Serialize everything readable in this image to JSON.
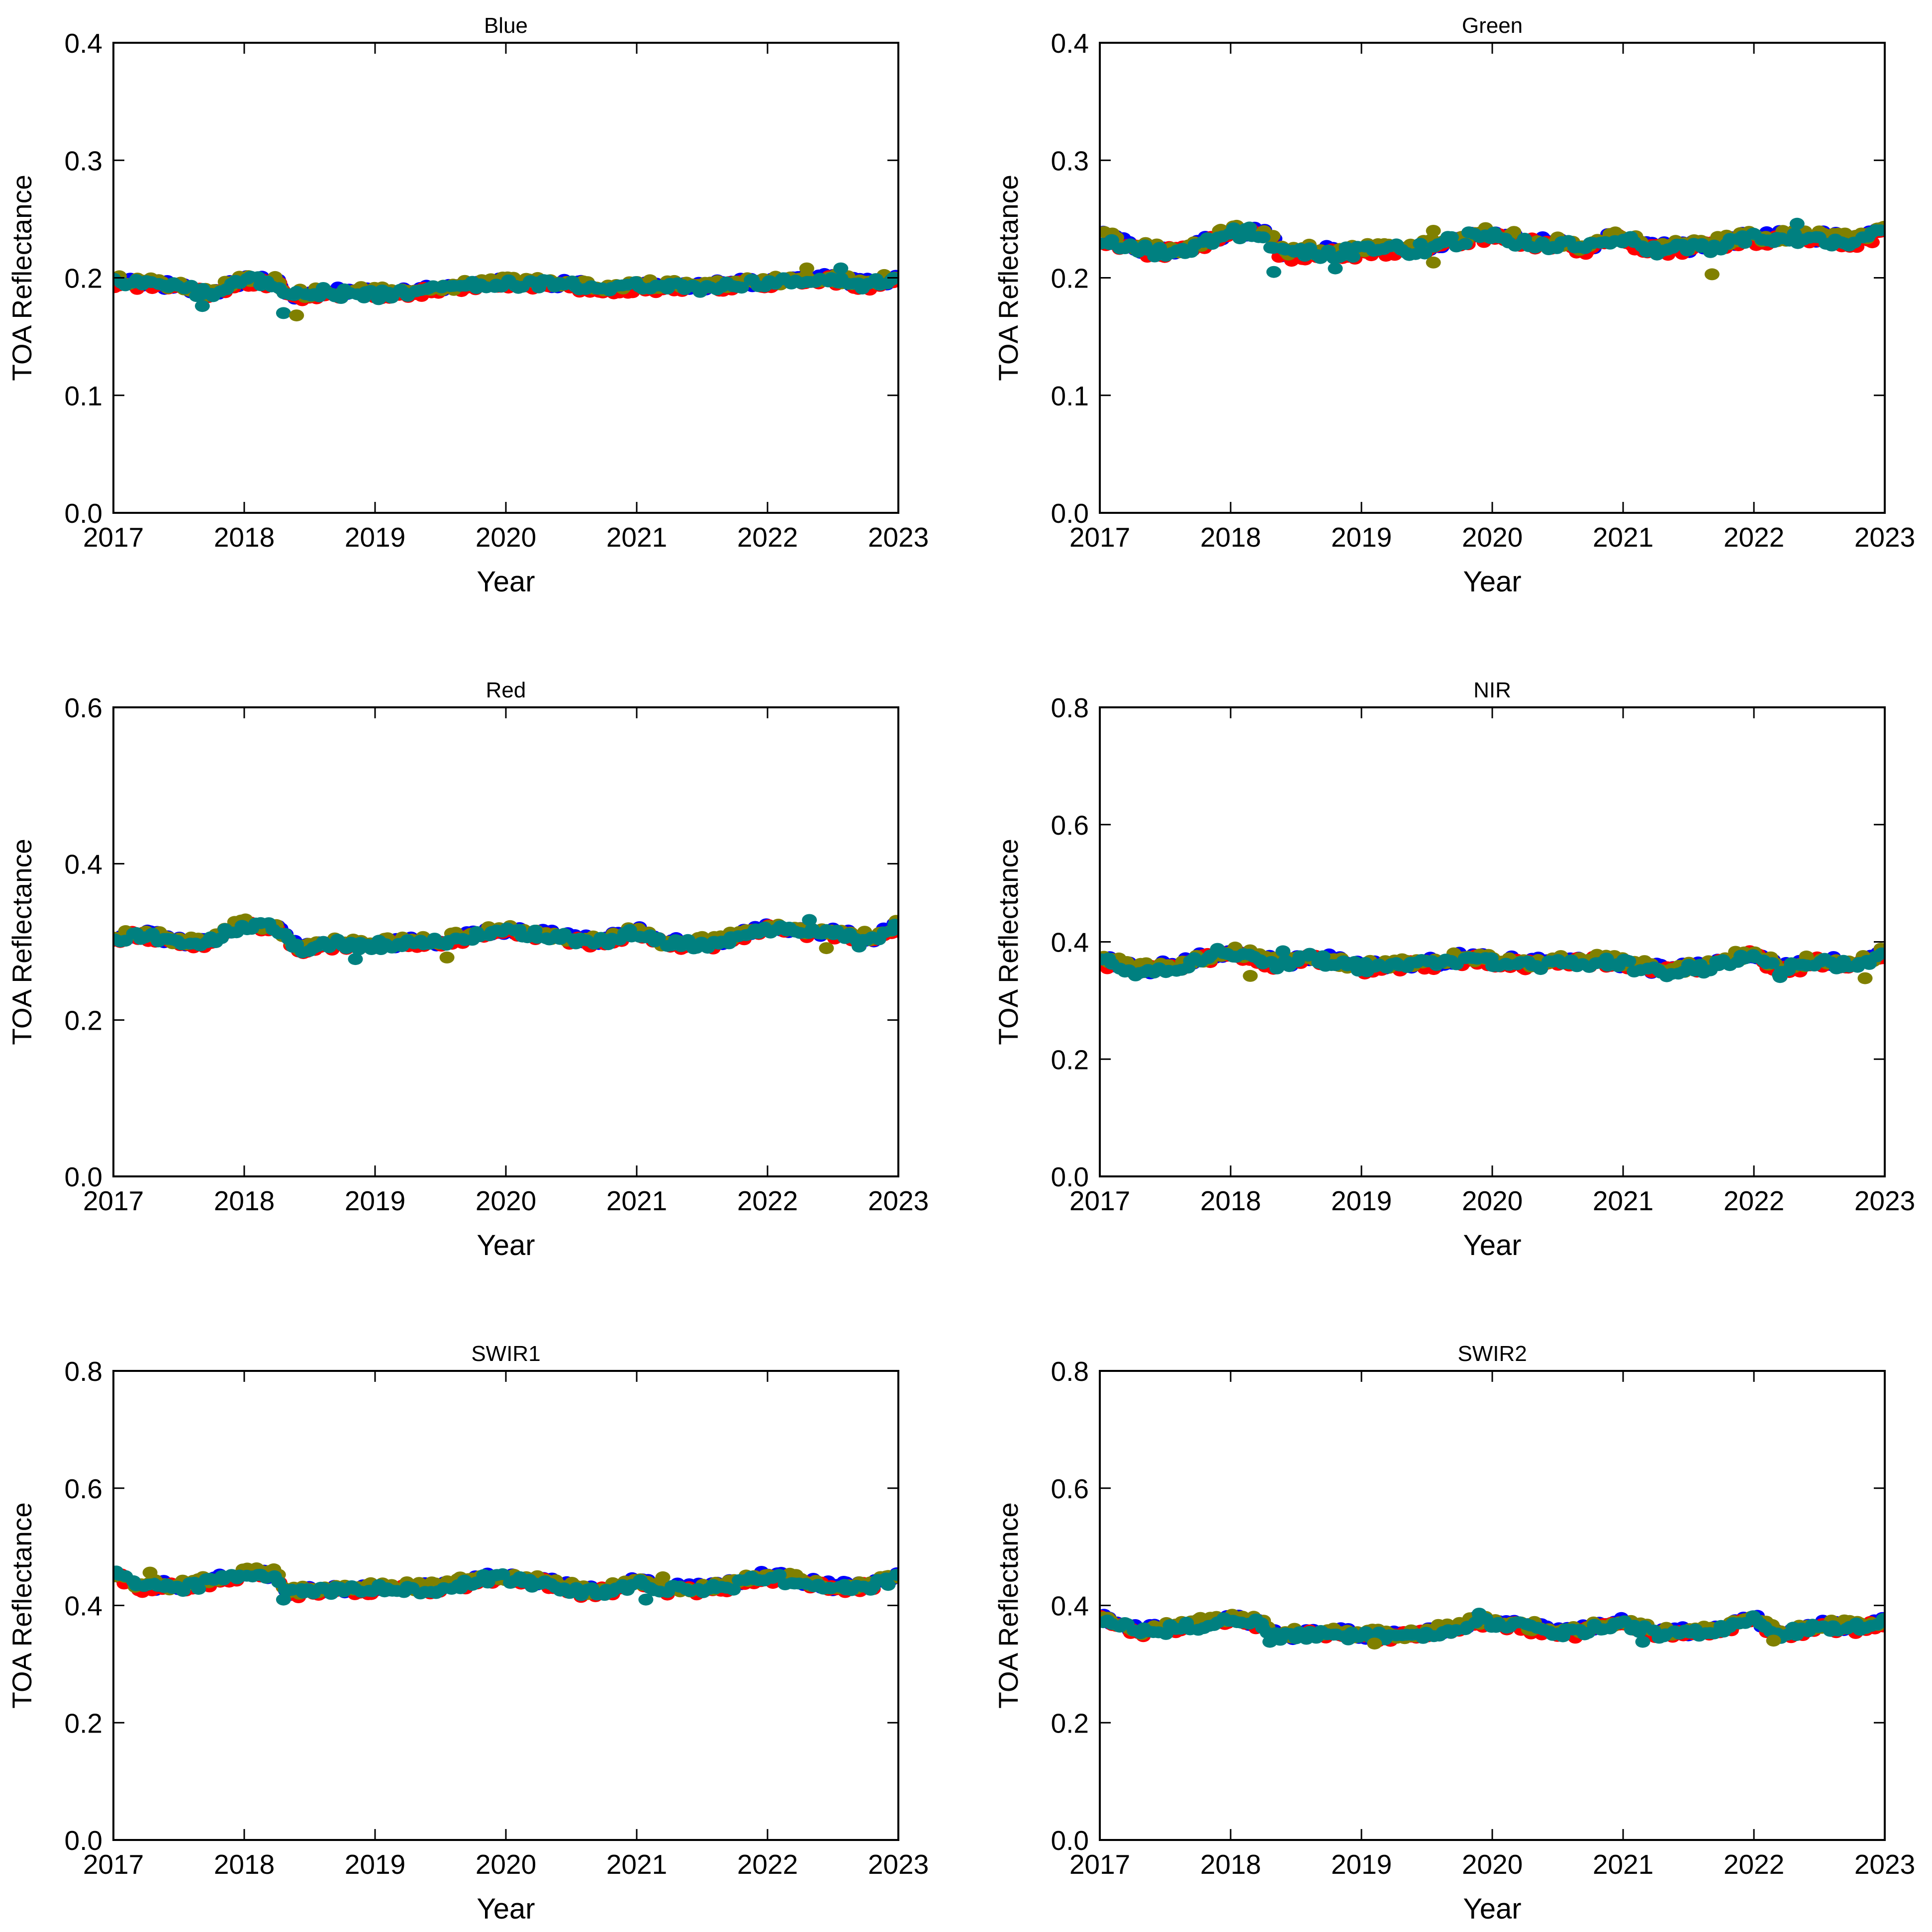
{
  "colors": {
    "series1": "#0000ff",
    "series2": "#ff0000",
    "series3": "#808000",
    "series4": "#008080"
  },
  "chart_data": [
    {
      "type": "scatter",
      "title": "Blue",
      "xlabel": "Year",
      "ylabel": "TOA Reflectance",
      "xlim": [
        2017,
        2023
      ],
      "ylim": [
        0,
        0.4
      ],
      "xticks": [
        "2017",
        "2018",
        "2019",
        "2020",
        "2021",
        "2022",
        "2023"
      ],
      "yticks": [
        "0.0",
        "0.1",
        "0.2",
        "0.3",
        "0.4"
      ],
      "ytick_values": [
        0,
        0.1,
        0.2,
        0.3,
        0.4
      ],
      "baseline": [
        [
          2017.0,
          0.197
        ],
        [
          2017.5,
          0.192
        ],
        [
          2017.75,
          0.186
        ],
        [
          2018.0,
          0.198
        ],
        [
          2018.25,
          0.196
        ],
        [
          2018.35,
          0.184
        ],
        [
          2018.6,
          0.188
        ],
        [
          2019.0,
          0.186
        ],
        [
          2019.5,
          0.191
        ],
        [
          2020.0,
          0.196
        ],
        [
          2020.5,
          0.194
        ],
        [
          2020.75,
          0.19
        ],
        [
          2021.0,
          0.193
        ],
        [
          2021.5,
          0.192
        ],
        [
          2022.0,
          0.196
        ],
        [
          2022.5,
          0.199
        ],
        [
          2022.75,
          0.194
        ],
        [
          2023.0,
          0.199
        ]
      ],
      "spread": 0.004,
      "outliers": [
        [
          2018.3,
          0.17
        ],
        [
          2018.4,
          0.168
        ],
        [
          2017.68,
          0.176
        ],
        [
          2022.3,
          0.208
        ],
        [
          2022.56,
          0.208
        ]
      ]
    },
    {
      "type": "scatter",
      "title": "Green",
      "xlabel": "Year",
      "ylabel": "TOA Reflectance",
      "xlim": [
        2017,
        2023
      ],
      "ylim": [
        0,
        0.4
      ],
      "xticks": [
        "2017",
        "2018",
        "2019",
        "2020",
        "2021",
        "2022",
        "2023"
      ],
      "yticks": [
        "0.0",
        "0.1",
        "0.2",
        "0.3",
        "0.4"
      ],
      "ytick_values": [
        0,
        0.1,
        0.2,
        0.3,
        0.4
      ],
      "baseline": [
        [
          2017.0,
          0.234
        ],
        [
          2017.3,
          0.224
        ],
        [
          2017.6,
          0.222
        ],
        [
          2017.75,
          0.228
        ],
        [
          2018.0,
          0.239
        ],
        [
          2018.25,
          0.238
        ],
        [
          2018.4,
          0.22
        ],
        [
          2018.7,
          0.222
        ],
        [
          2019.0,
          0.222
        ],
        [
          2019.5,
          0.226
        ],
        [
          2019.9,
          0.237
        ],
        [
          2020.3,
          0.231
        ],
        [
          2020.7,
          0.226
        ],
        [
          2021.0,
          0.235
        ],
        [
          2021.2,
          0.224
        ],
        [
          2021.6,
          0.226
        ],
        [
          2022.0,
          0.234
        ],
        [
          2022.5,
          0.234
        ],
        [
          2022.8,
          0.23
        ],
        [
          2023.0,
          0.24
        ]
      ],
      "spread": 0.005,
      "outliers": [
        [
          2018.33,
          0.205
        ],
        [
          2021.68,
          0.203
        ],
        [
          2022.33,
          0.246
        ],
        [
          2019.55,
          0.24
        ],
        [
          2018.8,
          0.208
        ],
        [
          2019.55,
          0.213
        ]
      ]
    },
    {
      "type": "scatter",
      "title": "Red",
      "xlabel": "Year",
      "ylabel": "TOA Reflectance",
      "xlim": [
        2017,
        2023
      ],
      "ylim": [
        0,
        0.6
      ],
      "xticks": [
        "2017",
        "2018",
        "2019",
        "2020",
        "2021",
        "2022",
        "2023"
      ],
      "yticks": [
        "0.0",
        "0.2",
        "0.4",
        "0.6"
      ],
      "ytick_values": [
        0,
        0.2,
        0.4,
        0.6
      ],
      "baseline": [
        [
          2017.0,
          0.305
        ],
        [
          2017.2,
          0.31
        ],
        [
          2017.5,
          0.3
        ],
        [
          2017.7,
          0.3
        ],
        [
          2018.0,
          0.323
        ],
        [
          2018.25,
          0.318
        ],
        [
          2018.4,
          0.292
        ],
        [
          2018.7,
          0.298
        ],
        [
          2019.0,
          0.296
        ],
        [
          2019.5,
          0.3
        ],
        [
          2019.9,
          0.314
        ],
        [
          2020.3,
          0.308
        ],
        [
          2020.7,
          0.3
        ],
        [
          2021.0,
          0.313
        ],
        [
          2021.2,
          0.298
        ],
        [
          2021.6,
          0.298
        ],
        [
          2022.0,
          0.318
        ],
        [
          2022.5,
          0.31
        ],
        [
          2022.8,
          0.304
        ],
        [
          2023.0,
          0.322
        ]
      ],
      "spread": 0.006,
      "outliers": [
        [
          2018.85,
          0.278
        ],
        [
          2019.55,
          0.28
        ],
        [
          2022.32,
          0.328
        ],
        [
          2022.45,
          0.292
        ],
        [
          2022.7,
          0.294
        ]
      ]
    },
    {
      "type": "scatter",
      "title": "NIR",
      "xlabel": "Year",
      "ylabel": "TOA Reflectance",
      "xlim": [
        2017,
        2023
      ],
      "ylim": [
        0,
        0.8
      ],
      "xticks": [
        "2017",
        "2018",
        "2019",
        "2020",
        "2021",
        "2022",
        "2023"
      ],
      "yticks": [
        "0.0",
        "0.2",
        "0.4",
        "0.6",
        "0.8"
      ],
      "ytick_values": [
        0,
        0.2,
        0.4,
        0.6,
        0.8
      ],
      "baseline": [
        [
          2017.0,
          0.37
        ],
        [
          2017.3,
          0.35
        ],
        [
          2017.6,
          0.36
        ],
        [
          2018.0,
          0.383
        ],
        [
          2018.25,
          0.37
        ],
        [
          2018.4,
          0.36
        ],
        [
          2018.6,
          0.375
        ],
        [
          2019.0,
          0.356
        ],
        [
          2019.5,
          0.362
        ],
        [
          2019.8,
          0.372
        ],
        [
          2020.3,
          0.362
        ],
        [
          2020.8,
          0.368
        ],
        [
          2021.0,
          0.362
        ],
        [
          2021.3,
          0.35
        ],
        [
          2021.6,
          0.356
        ],
        [
          2022.0,
          0.38
        ],
        [
          2022.2,
          0.352
        ],
        [
          2022.5,
          0.368
        ],
        [
          2022.75,
          0.36
        ],
        [
          2023.0,
          0.378
        ]
      ],
      "spread": 0.009,
      "outliers": [
        [
          2018.4,
          0.384
        ],
        [
          2022.85,
          0.338
        ],
        [
          2022.2,
          0.34
        ],
        [
          2018.15,
          0.342
        ],
        [
          2017.9,
          0.388
        ]
      ]
    },
    {
      "type": "scatter",
      "title": "SWIR1",
      "xlabel": "Year",
      "ylabel": "TOA Reflectance",
      "xlim": [
        2017,
        2023
      ],
      "ylim": [
        0,
        0.8
      ],
      "xticks": [
        "2017",
        "2018",
        "2019",
        "2020",
        "2021",
        "2022",
        "2023"
      ],
      "yticks": [
        "0.0",
        "0.2",
        "0.4",
        "0.6",
        "0.8"
      ],
      "ytick_values": [
        0,
        0.2,
        0.4,
        0.6,
        0.8
      ],
      "baseline": [
        [
          2017.0,
          0.455
        ],
        [
          2017.2,
          0.432
        ],
        [
          2017.5,
          0.432
        ],
        [
          2017.75,
          0.44
        ],
        [
          2018.0,
          0.455
        ],
        [
          2018.25,
          0.45
        ],
        [
          2018.35,
          0.42
        ],
        [
          2018.7,
          0.428
        ],
        [
          2019.0,
          0.428
        ],
        [
          2019.5,
          0.43
        ],
        [
          2019.9,
          0.448
        ],
        [
          2020.3,
          0.44
        ],
        [
          2020.6,
          0.422
        ],
        [
          2020.8,
          0.426
        ],
        [
          2021.0,
          0.44
        ],
        [
          2021.2,
          0.428
        ],
        [
          2021.6,
          0.428
        ],
        [
          2022.0,
          0.45
        ],
        [
          2022.5,
          0.43
        ],
        [
          2022.8,
          0.434
        ],
        [
          2023.0,
          0.45
        ]
      ],
      "spread": 0.008,
      "outliers": [
        [
          2018.3,
          0.41
        ],
        [
          2021.2,
          0.448
        ],
        [
          2021.07,
          0.41
        ],
        [
          2017.28,
          0.456
        ],
        [
          2020.2,
          0.432
        ]
      ]
    },
    {
      "type": "scatter",
      "title": "SWIR2",
      "xlabel": "Year",
      "ylabel": "TOA Reflectance",
      "xlim": [
        2017,
        2023
      ],
      "ylim": [
        0,
        0.8
      ],
      "xticks": [
        "2017",
        "2018",
        "2019",
        "2020",
        "2021",
        "2022",
        "2023"
      ],
      "yticks": [
        "0.0",
        "0.2",
        "0.4",
        "0.6",
        "0.8"
      ],
      "ytick_values": [
        0,
        0.2,
        0.4,
        0.6,
        0.8
      ],
      "baseline": [
        [
          2017.0,
          0.38
        ],
        [
          2017.3,
          0.355
        ],
        [
          2017.6,
          0.362
        ],
        [
          2018.0,
          0.376
        ],
        [
          2018.25,
          0.368
        ],
        [
          2018.35,
          0.345
        ],
        [
          2018.7,
          0.355
        ],
        [
          2019.0,
          0.348
        ],
        [
          2019.3,
          0.348
        ],
        [
          2019.6,
          0.356
        ],
        [
          2019.9,
          0.372
        ],
        [
          2020.3,
          0.362
        ],
        [
          2020.6,
          0.352
        ],
        [
          2021.0,
          0.372
        ],
        [
          2021.3,
          0.35
        ],
        [
          2021.6,
          0.356
        ],
        [
          2022.0,
          0.376
        ],
        [
          2022.2,
          0.35
        ],
        [
          2022.5,
          0.366
        ],
        [
          2022.8,
          0.362
        ],
        [
          2023.0,
          0.374
        ]
      ],
      "spread": 0.008,
      "outliers": [
        [
          2018.3,
          0.338
        ],
        [
          2019.1,
          0.335
        ],
        [
          2021.15,
          0.338
        ],
        [
          2022.15,
          0.34
        ],
        [
          2019.9,
          0.386
        ]
      ]
    }
  ]
}
